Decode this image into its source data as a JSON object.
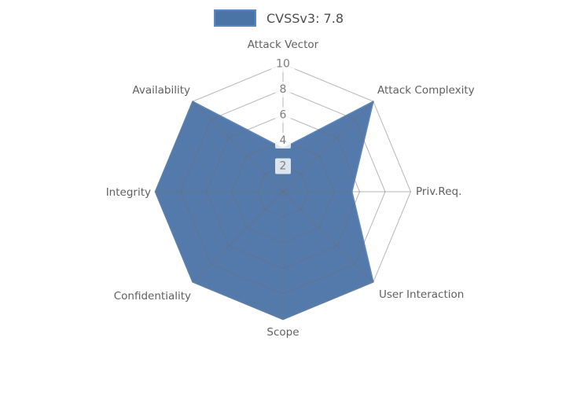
{
  "legend": {
    "label": "CVSSv3: 7.8"
  },
  "chart_data": {
    "type": "radar",
    "title": "",
    "categories": [
      "Attack Vector",
      "Attack Complexity",
      "Priv.Req.",
      "User Interaction",
      "Scope",
      "Confidentiality",
      "Integrity",
      "Availability"
    ],
    "series": [
      {
        "name": "CVSSv3: 7.8",
        "values": [
          3.4,
          10,
          5.4,
          10,
          10,
          10,
          10,
          10
        ]
      }
    ],
    "radial_ticks": [
      2,
      4,
      6,
      8,
      10
    ],
    "rlim": [
      0,
      10
    ],
    "grid": true,
    "grid_shape": "polygon",
    "legend_position": "top-center",
    "colors": {
      "fill": "#4a73a6",
      "line": "#5b87be",
      "grid": "#6e6e6e",
      "tick_label": "#7d7d7d",
      "axis_label": "#606060",
      "legend_text": "#4d4d4d"
    }
  }
}
